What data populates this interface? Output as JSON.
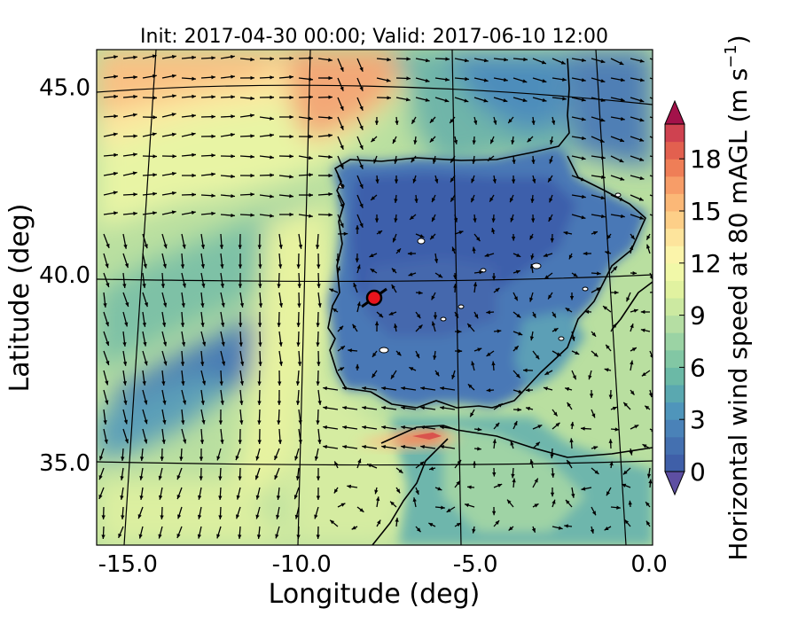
{
  "chart_data": {
    "type": "heatmap",
    "title": "Init: 2017-04-30 00:00; Valid: 2017-06-10 12:00",
    "xlabel": "Longitude (deg)",
    "ylabel": "Latitude (deg)",
    "xlim": [
      -15.9,
      0.1
    ],
    "ylim": [
      32.8,
      46.0
    ],
    "xticks": [
      -15.0,
      -10.0,
      -5.0,
      0.0
    ],
    "xtick_labels": [
      "-15.0",
      "-10.0",
      "-5.0",
      "0.0"
    ],
    "yticks": [
      35.0,
      40.0,
      45.0
    ],
    "ytick_labels": [
      "35.0",
      "40.0",
      "45.0"
    ],
    "colorbar": {
      "label": "Horizontal wind speed at 80 mAGL (m s",
      "label_superscript": "−1",
      "label_close": ")",
      "range": [
        0,
        20
      ],
      "levels": [
        0,
        1,
        2,
        3,
        4,
        5,
        6,
        7,
        8,
        9,
        10,
        11,
        12,
        13,
        14,
        15,
        16,
        17,
        18,
        19,
        20
      ],
      "extend": "both",
      "colors": [
        "#3f5fa8",
        "#4470b0",
        "#4a82b8",
        "#4f95bb",
        "#5aa8b0",
        "#6bb9a6",
        "#82c7a4",
        "#9bd3a4",
        "#b5dea3",
        "#cce9a1",
        "#e1f2a0",
        "#f1f8a8",
        "#fbf4aa",
        "#fde49c",
        "#fdcf88",
        "#fbb877",
        "#f79d68",
        "#ef7e57",
        "#e2604f",
        "#cf4250"
      ],
      "under_color": "#5e4fa2",
      "over_color": "#a3124a",
      "ticks": [
        0,
        3,
        6,
        9,
        12,
        15,
        18
      ],
      "tick_labels": [
        "0",
        "3",
        "6",
        "9",
        "12",
        "15",
        "18"
      ]
    },
    "marker": {
      "lon": -7.7,
      "lat": 39.3,
      "color": "#e8141c"
    }
  }
}
